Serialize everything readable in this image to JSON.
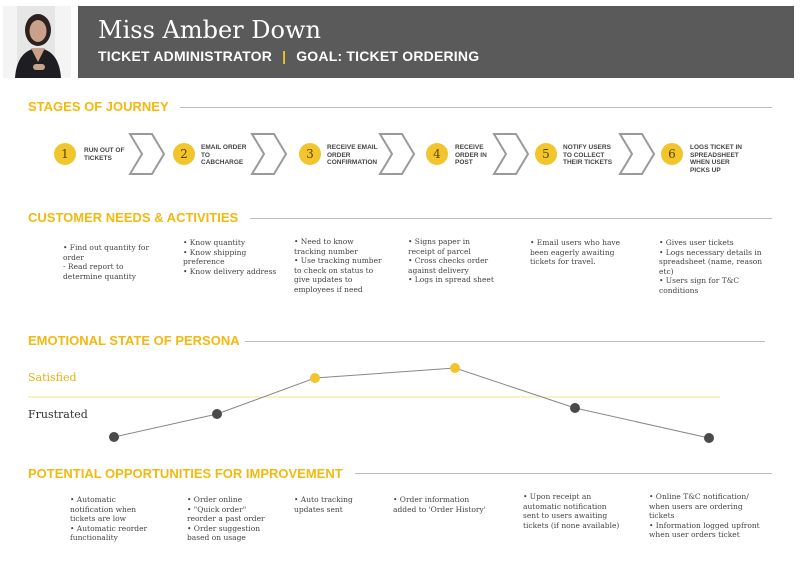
{
  "persona": {
    "name": "Miss Amber Down",
    "role": "TICKET ADMINISTRATOR",
    "separator": "|",
    "goal": "GOAL: TICKET ORDERING"
  },
  "colors": {
    "accent": "#f2c52c",
    "banner": "#5a5a5a",
    "chevron": "#999999"
  },
  "sections": {
    "stages": "STAGES OF JOURNEY",
    "needs": "CUSTOMER NEEDS & ACTIVITIES",
    "emotion": "EMOTIONAL STATE OF PERSONA",
    "opportunities": "POTENTIAL OPPORTUNITIES FOR IMPROVEMENT"
  },
  "stages": [
    {
      "number": "1",
      "label": "RUN OUT OF TICKETS"
    },
    {
      "number": "2",
      "label": "EMAIL ORDER TO CABCHARGE"
    },
    {
      "number": "3",
      "label": "RECEIVE EMAIL ORDER CONFIRMATION"
    },
    {
      "number": "4",
      "label": "RECEIVE ORDER IN POST"
    },
    {
      "number": "5",
      "label": "NOTIFY USERS TO COLLECT THEIR TICKETS"
    },
    {
      "number": "6",
      "label": "LOGS TICKET IN SPREADSHEET WHEN USER PICKS UP"
    }
  ],
  "needs": [
    [
      "• Find out quantity for order",
      "- Read report to determine quantity"
    ],
    [
      "• Know quantity",
      "• Know shipping preference",
      "• Know delivery address"
    ],
    [
      "• Need to know tracking number",
      "• Use tracking number to check on status to give updates to employees if need"
    ],
    [
      "• Signs paper in receipt of parcel",
      "• Cross checks order against delivery",
      "• Logs in spread sheet"
    ],
    [
      "• Email users who have been eagerly awaiting tickets for travel."
    ],
    [
      "• Gives user tickets",
      "• Logs necessary details in spreadsheet (name, reason etc)",
      "• Users sign for T&C conditions"
    ]
  ],
  "emotion": {
    "labels": {
      "satisfied": "Satisfied",
      "frustrated": "Frustrated"
    },
    "levels": [
      "frustrated",
      "frustrated",
      "satisfied",
      "satisfied",
      "frustrated",
      "frustrated"
    ]
  },
  "opportunities": [
    [
      "• Automatic notification when tickets are low",
      "• Automatic reorder functionality"
    ],
    [
      "• Order online",
      "• \"Quick order\" reorder a past order",
      "• Order suggestion based on usage"
    ],
    [
      "• Auto tracking updates sent"
    ],
    [
      "• Order information added to 'Order History'"
    ],
    [
      "• Upon receipt an automatic notification sent to users awaiting tickets (if none available)"
    ],
    [
      "• Online T&C notification/ when users are ordering tickets",
      "• Information logged upfront when user orders ticket"
    ]
  ]
}
